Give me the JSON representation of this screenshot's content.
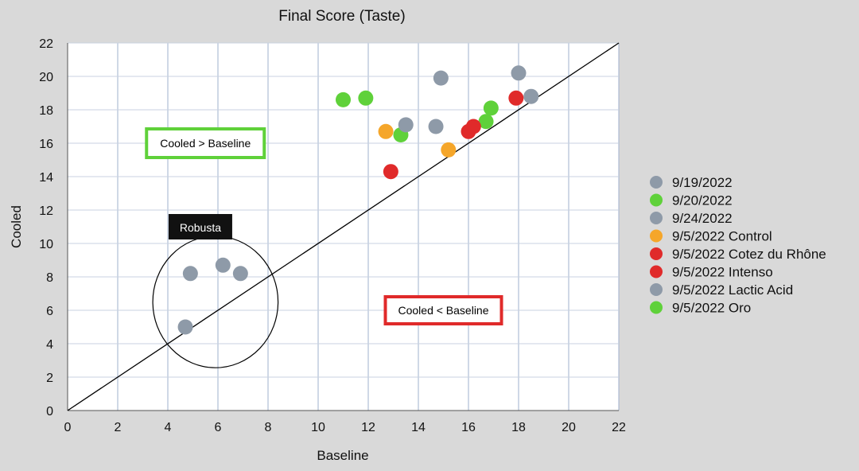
{
  "chart_data": {
    "type": "scatter",
    "title": "Final Score (Taste)",
    "xlabel": "Baseline",
    "ylabel": "Cooled",
    "xlim": [
      0,
      22
    ],
    "ylim": [
      0,
      22
    ],
    "xticks": [
      "0",
      "2",
      "4",
      "6",
      "8",
      "10",
      "12",
      "14",
      "16",
      "18",
      "20",
      "22"
    ],
    "yticks": [
      "0",
      "2",
      "4",
      "6",
      "8",
      "10",
      "12",
      "14",
      "16",
      "18",
      "20",
      "22"
    ],
    "grid": true,
    "legend_position": "right",
    "reference_line": {
      "from": [
        0,
        0
      ],
      "to": [
        22,
        22
      ]
    },
    "series": [
      {
        "name": "9/19/2022",
        "color": "#8e9aa8",
        "points": [
          [
            4.7,
            5.0
          ],
          [
            4.9,
            8.2
          ],
          [
            6.2,
            8.7
          ],
          [
            6.9,
            8.2
          ]
        ]
      },
      {
        "name": "9/20/2022",
        "color": "#5fd13a",
        "points": [
          [
            11.0,
            18.6
          ],
          [
            11.9,
            18.7
          ],
          [
            13.3,
            16.5
          ],
          [
            16.7,
            17.3
          ],
          [
            16.9,
            18.1
          ]
        ]
      },
      {
        "name": "9/24/2022",
        "color": "#8e9aa8",
        "points": [
          [
            13.5,
            17.1
          ],
          [
            14.7,
            17.0
          ],
          [
            14.9,
            19.9
          ],
          [
            18.0,
            20.2
          ],
          [
            18.5,
            18.8
          ]
        ]
      },
      {
        "name": "9/5/2022 Control",
        "color": "#f5a62a",
        "points": [
          [
            12.7,
            16.7
          ],
          [
            15.2,
            15.6
          ]
        ]
      },
      {
        "name": "9/5/2022 Cotez du Rhône",
        "color": "#e02a2a",
        "points": [
          [
            12.9,
            14.3
          ],
          [
            16.0,
            16.7
          ],
          [
            16.2,
            17.0
          ]
        ]
      },
      {
        "name": "9/5/2022 Intenso",
        "color": "#e02a2a",
        "points": [
          [
            17.9,
            18.7
          ]
        ]
      },
      {
        "name": "9/5/2022 Lactic Acid",
        "color": "#8e9aa8",
        "points": []
      },
      {
        "name": "9/5/2022 Oro",
        "color": "#5fd13a",
        "points": []
      }
    ],
    "annotations": [
      {
        "text": "Cooled > Baseline",
        "border_color": "#5fd13a",
        "style": "boxed"
      },
      {
        "text": "Cooled < Baseline",
        "border_color": "#e02a2a",
        "style": "boxed"
      },
      {
        "text": "Robusta",
        "style": "dark-label"
      }
    ],
    "circle_highlight": {
      "center": [
        5.9,
        6.5
      ],
      "radius_x": 2.5
    }
  }
}
